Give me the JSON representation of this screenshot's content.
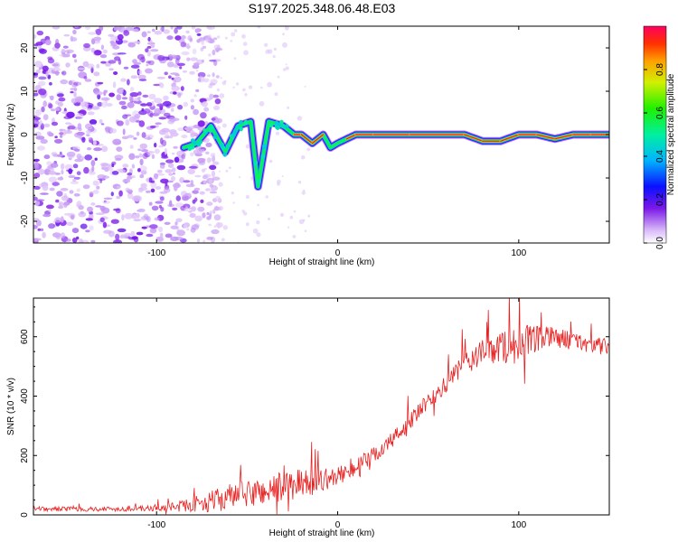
{
  "title": "S197.2025.348.06.48.E03",
  "colors": {
    "snr_line": "#e82020",
    "ridge": "#e02828",
    "frame": "#000000"
  },
  "chart_data": [
    {
      "type": "heatmap",
      "name": "spectrogram",
      "xlabel": "Height of straight line (km)",
      "ylabel": "Frequency (Hz)",
      "xlim": [
        -168,
        150
      ],
      "ylim": [
        -25,
        25
      ],
      "xticks": [
        -100,
        0,
        100
      ],
      "yticks": [
        -20,
        -10,
        0,
        10,
        20
      ],
      "noise_region_x": [
        -168,
        -85
      ],
      "ridge": {
        "description_points_x": [
          -85,
          -78,
          -70,
          -62,
          -55,
          -48,
          -44,
          -38,
          -30,
          -24,
          -20,
          -14,
          -8,
          -4,
          0,
          5,
          10,
          20,
          40,
          70,
          80,
          90,
          100,
          110,
          120,
          130,
          140,
          150
        ],
        "description_points_y": [
          -3,
          -2,
          2,
          -4,
          2,
          3,
          -12,
          3,
          2,
          0,
          0,
          -2,
          0,
          -3,
          -2,
          -1,
          0,
          0,
          0,
          0,
          -1.5,
          -1.5,
          0,
          0,
          -1,
          0,
          0,
          0
        ],
        "amplitude": [
          0.3,
          0.35,
          0.45,
          0.4,
          0.4,
          0.4,
          0.35,
          0.4,
          0.45,
          0.85,
          0.9,
          0.85,
          0.85,
          0.5,
          0.75,
          0.8,
          0.9,
          0.9,
          0.95,
          0.95,
          0.9,
          0.9,
          0.9,
          0.95,
          0.9,
          0.9,
          0.95,
          0.95
        ]
      },
      "colorbar": {
        "label": "Normalized spectral amplitude",
        "range": [
          0,
          1
        ],
        "ticks": [
          "0.0",
          "0.2",
          "0.4",
          "0.6",
          "0.8"
        ],
        "tick_values": [
          0.0,
          0.2,
          0.4,
          0.6,
          0.8
        ]
      }
    },
    {
      "type": "line",
      "name": "snr",
      "xlabel": "Height of straight line (km)",
      "ylabel": "SNR (10 * v/v)",
      "xlim": [
        -168,
        150
      ],
      "ylim": [
        0,
        730
      ],
      "xticks": [
        -100,
        0,
        100
      ],
      "yticks": [
        0,
        200,
        400,
        600
      ],
      "trend_x": [
        -168,
        -120,
        -100,
        -90,
        -80,
        -70,
        -60,
        -50,
        -40,
        -30,
        -20,
        -10,
        0,
        10,
        20,
        30,
        40,
        50,
        60,
        70,
        80,
        90,
        100,
        110,
        120,
        130,
        140,
        150
      ],
      "trend_y": [
        20,
        20,
        22,
        28,
        35,
        45,
        60,
        70,
        80,
        95,
        105,
        115,
        130,
        160,
        200,
        250,
        315,
        380,
        440,
        510,
        545,
        565,
        575,
        590,
        600,
        585,
        575,
        560
      ],
      "noise_amp_y": [
        8,
        8,
        10,
        15,
        25,
        35,
        45,
        45,
        50,
        55,
        50,
        40,
        30,
        30,
        30,
        30,
        30,
        30,
        30,
        40,
        45,
        55,
        70,
        45,
        35,
        30,
        30,
        30
      ]
    }
  ]
}
